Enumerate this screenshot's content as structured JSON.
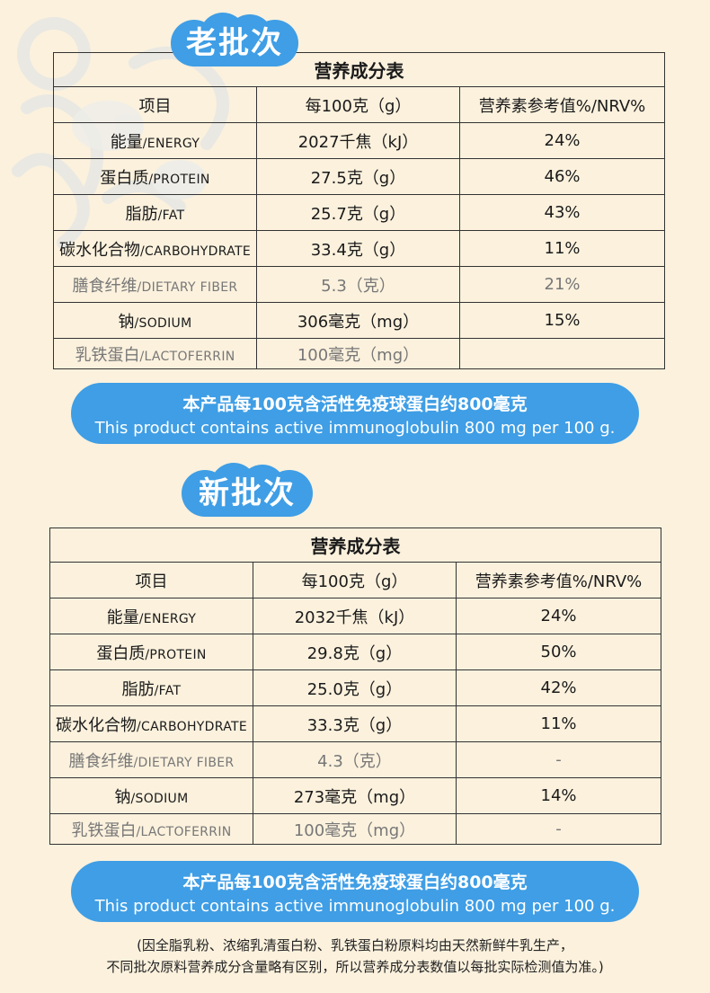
{
  "sections": [
    {
      "batch_label": "老批次",
      "table_title": "营养成分表",
      "headers": [
        "项目",
        "每100克（g）",
        "营养素参考值%/NRV%"
      ],
      "rows": [
        {
          "zh": "能量",
          "en": "/ENERGY",
          "amount": "2027千焦（kJ）",
          "nrv": "24%",
          "gray": false
        },
        {
          "zh": "蛋白质",
          "en": "/PROTEIN",
          "amount": "27.5克（g）",
          "nrv": "46%",
          "gray": false
        },
        {
          "zh": "脂肪",
          "en": "/FAT",
          "amount": "25.7克（g）",
          "nrv": "43%",
          "gray": false
        },
        {
          "zh": "碳水化合物",
          "en": "/CARBOHYDRATE",
          "amount": "33.4克（g）",
          "nrv": "11%",
          "gray": false
        },
        {
          "zh": "膳食纤维",
          "en": "/DIETARY FIBER",
          "amount": "5.3（克）",
          "nrv": "21%",
          "gray": true
        },
        {
          "zh": "钠",
          "en": "/SODIUM",
          "amount": "306毫克（mg）",
          "nrv": "15%",
          "gray": false
        },
        {
          "zh": "乳铁蛋白",
          "en": "/LACTOFERRIN",
          "amount": "100毫克（mg）",
          "nrv": "",
          "gray": true
        }
      ],
      "banner_zh": "本产品每100克含活性免疫球蛋白约800毫克",
      "banner_en": "This product contains active immunoglobulin 800 mg per 100 g."
    },
    {
      "batch_label": "新批次",
      "table_title": "营养成分表",
      "headers": [
        "项目",
        "每100克（g）",
        "营养素参考值%/NRV%"
      ],
      "rows": [
        {
          "zh": "能量",
          "en": "/ENERGY",
          "amount": "2032千焦（kJ）",
          "nrv": "24%",
          "gray": false
        },
        {
          "zh": "蛋白质",
          "en": "/PROTEIN",
          "amount": "29.8克（g）",
          "nrv": "50%",
          "gray": false
        },
        {
          "zh": "脂肪",
          "en": "/FAT",
          "amount": "25.0克（g）",
          "nrv": "42%",
          "gray": false
        },
        {
          "zh": "碳水化合物",
          "en": "/CARBOHYDRATE",
          "amount": "33.3克（g）",
          "nrv": "11%",
          "gray": false
        },
        {
          "zh": "膳食纤维",
          "en": "/DIETARY FIBER",
          "amount": "4.3（克）",
          "nrv": "-",
          "gray": true
        },
        {
          "zh": "钠",
          "en": "/SODIUM",
          "amount": "273毫克（mg）",
          "nrv": "14%",
          "gray": false
        },
        {
          "zh": "乳铁蛋白",
          "en": "/LACTOFERRIN",
          "amount": "100毫克（mg）",
          "nrv": "-",
          "gray": true
        }
      ],
      "banner_zh": "本产品每100克含活性免疫球蛋白约800毫克",
      "banner_en": "This product contains active immunoglobulin 800 mg per 100 g."
    }
  ],
  "footnote_line1": "(因全脂乳粉、浓缩乳清蛋白粉、乳铁蛋白粉原料均由天然新鲜牛乳生产，",
  "footnote_line2": "不同批次原料营养成分含量略有区别，所以营养成分表数值以每批实际检测值为准。)",
  "colors": {
    "background": "#fbf1dd",
    "accent_blue": "#3f9ee5",
    "gray_text": "#777777"
  }
}
